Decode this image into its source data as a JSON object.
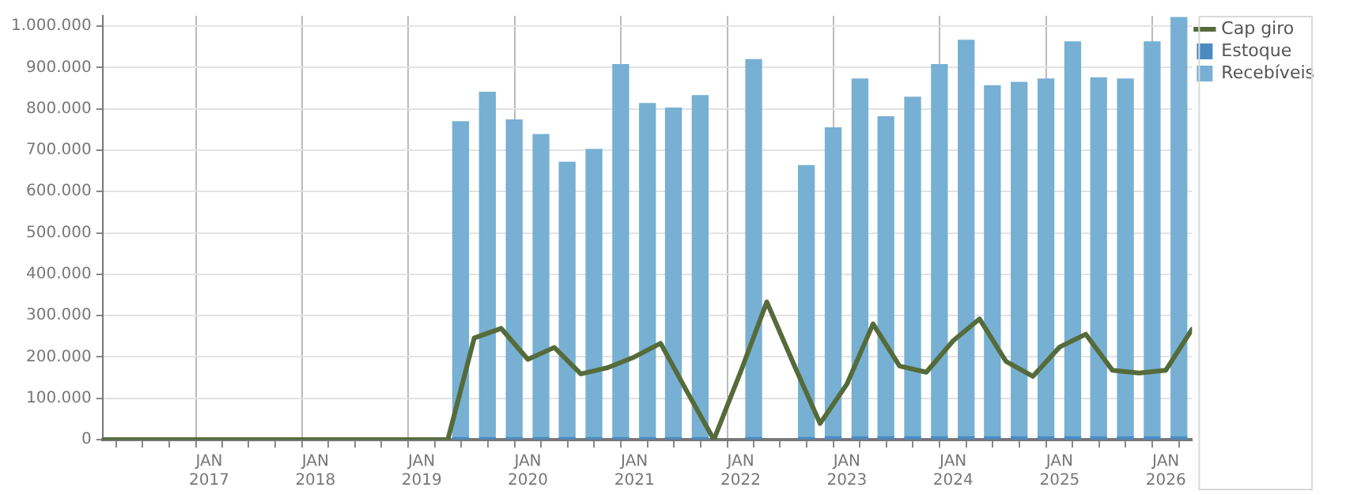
{
  "chart_data": {
    "type": "bar",
    "stacked": true,
    "legend": "top right",
    "grid": true,
    "marker": "none",
    "line_style": "solid",
    "xlim": [
      "2016-01",
      "2026-04"
    ],
    "xticks": [
      {
        "value": "2017-01",
        "label": "JAN\n2017"
      },
      {
        "value": "2018-01",
        "label": "JAN\n2018"
      },
      {
        "value": "2019-01",
        "label": "JAN\n2019"
      },
      {
        "value": "2020-01",
        "label": "JAN\n2020"
      },
      {
        "value": "2021-01",
        "label": "JAN\n2021"
      },
      {
        "value": "2022-01",
        "label": "JAN\n2022"
      },
      {
        "value": "2023-01",
        "label": "JAN\n2023"
      },
      {
        "value": "2024-01",
        "label": "JAN\n2024"
      },
      {
        "value": "2025-01",
        "label": "JAN\n2025"
      },
      {
        "value": "2026-01",
        "label": "JAN\n2026"
      }
    ],
    "ylim": [
      0,
      1025000
    ],
    "yticks": [
      {
        "value": 0,
        "label": "0"
      },
      {
        "value": 100000,
        "label": "100.000"
      },
      {
        "value": 200000,
        "label": "200.000"
      },
      {
        "value": 300000,
        "label": "300.000"
      },
      {
        "value": 400000,
        "label": "400.000"
      },
      {
        "value": 500000,
        "label": "500.000"
      },
      {
        "value": 600000,
        "label": "600.000"
      },
      {
        "value": 700000,
        "label": "700.000"
      },
      {
        "value": 800000,
        "label": "800.000"
      },
      {
        "value": 900000,
        "label": "900.000"
      },
      {
        "value": 1000000,
        "label": "1.000.000"
      }
    ],
    "x": [
      "2019-05-15",
      "2019-08-15",
      "2019-11-15",
      "2020-02-15",
      "2020-05-15",
      "2020-08-15",
      "2020-11-15",
      "2021-02-15",
      "2021-05-15",
      "2021-08-15",
      "2022-02-15",
      "2022-08-15",
      "2022-11-15",
      "2023-02-15",
      "2023-05-15",
      "2023-08-15",
      "2023-11-15",
      "2024-02-15",
      "2024-05-15",
      "2024-08-15",
      "2024-11-15",
      "2025-02-15",
      "2025-05-15",
      "2025-08-15",
      "2025-11-15",
      "2026-02-15"
    ],
    "series": [
      {
        "name": "Estoque",
        "color": "#4a8bc2",
        "values": [
          5000,
          5000,
          5000,
          5000,
          5000,
          5000,
          5000,
          5000,
          5000,
          5000,
          5000,
          5000,
          7000,
          7000,
          7000,
          7000,
          7000,
          7000,
          7000,
          7000,
          7000,
          7000,
          7000,
          7000,
          7000,
          7000
        ]
      },
      {
        "name": "Recebíveis",
        "color": "#77b0d3",
        "values": [
          764000,
          835000,
          768000,
          733000,
          666000,
          697000,
          902000,
          808000,
          797000,
          827000,
          914000,
          658000,
          747000,
          865000,
          774000,
          821000,
          900000,
          959000,
          849000,
          857000,
          865000,
          955000,
          868000,
          865000,
          955000,
          1014000
        ]
      },
      {
        "name": "Cap giro",
        "type": "line",
        "color": "#556b3a",
        "x": [
          "2016-01",
          "2019-04",
          "2019-07",
          "2019-10",
          "2020-01",
          "2020-04",
          "2020-07",
          "2020-10",
          "2021-01",
          "2021-04",
          "2021-07",
          "2021-10",
          "2022-01",
          "2022-04",
          "2022-07",
          "2022-10",
          "2023-01",
          "2023-04",
          "2023-07",
          "2023-10",
          "2024-01",
          "2024-04",
          "2024-07",
          "2024-10",
          "2025-01",
          "2025-04",
          "2025-07",
          "2025-10",
          "2026-01",
          "2026-04"
        ],
        "values": [
          0,
          0,
          246000,
          269000,
          194000,
          223000,
          159000,
          174000,
          200000,
          233000,
          116000,
          0,
          164000,
          333000,
          185000,
          39000,
          134000,
          280000,
          178000,
          163000,
          239000,
          292000,
          189000,
          153000,
          224000,
          255000,
          168000,
          161000,
          168000,
          267000
        ]
      }
    ]
  }
}
